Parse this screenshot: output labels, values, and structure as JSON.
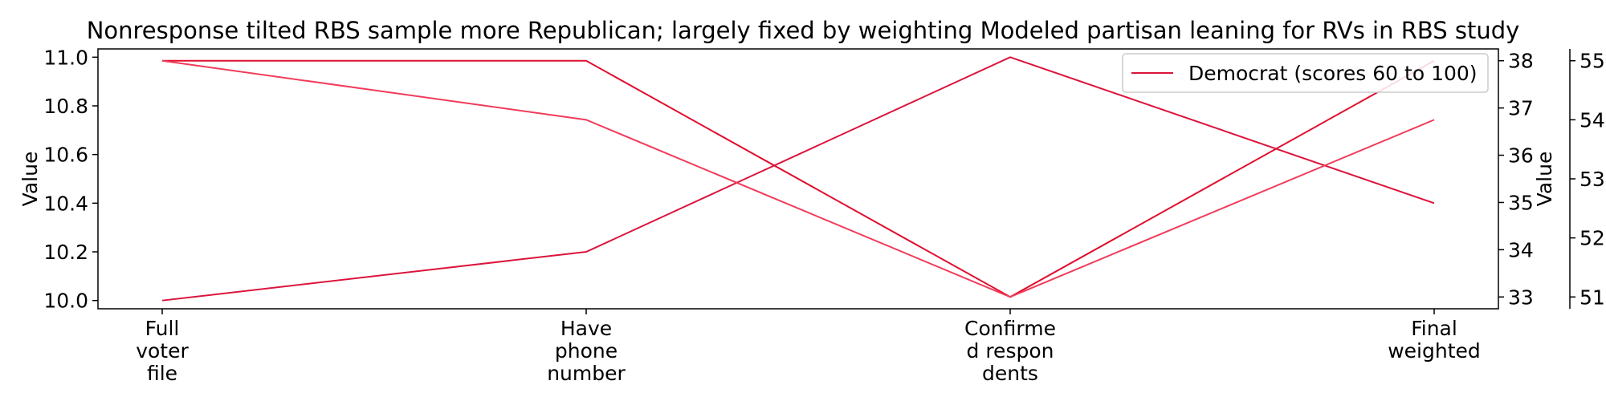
{
  "chart_data": {
    "type": "line",
    "title": "Nonresponse tilted RBS sample more Republican; largely fixed by weighting Modeled partisan leaning for RVs in RBS study",
    "categories": [
      [
        "Full",
        "voter",
        "file"
      ],
      [
        "Have",
        "phone",
        "number"
      ],
      [
        "Confirme",
        "d respon",
        "dents"
      ],
      [
        "Final",
        "weighted"
      ]
    ],
    "axes": [
      {
        "id": "left",
        "label": "Value",
        "ylim": [
          9.966,
          11.034
        ],
        "ticks": [
          10.0,
          10.2,
          10.4,
          10.6,
          10.8,
          11.0
        ],
        "tick_labels": [
          "10.0",
          "10.2",
          "10.4",
          "10.6",
          "10.8",
          "11.0"
        ]
      },
      {
        "id": "right1",
        "label": "Value",
        "ylim": [
          32.75,
          38.25
        ],
        "ticks": [
          33,
          34,
          35,
          36,
          37,
          38
        ],
        "tick_labels": [
          "33",
          "34",
          "35",
          "36",
          "37",
          "38"
        ]
      },
      {
        "id": "right2",
        "label": "",
        "ylim": [
          50.8,
          55.2
        ],
        "ticks": [
          51,
          52,
          53,
          54,
          55
        ],
        "tick_labels": [
          "51",
          "52",
          "53",
          "54",
          "55"
        ]
      }
    ],
    "series": [
      {
        "name": "Democrat (scores 60 to 100)",
        "axis": "left",
        "values": [
          10.0,
          10.2,
          11.0,
          10.4
        ],
        "color": "#dc143c"
      },
      {
        "name": "",
        "axis": "right1",
        "values": [
          38,
          38,
          33,
          38
        ],
        "color": "#e0102f"
      },
      {
        "name": "",
        "axis": "right2",
        "values": [
          55,
          54,
          51,
          54
        ],
        "color": "#f03c5a"
      }
    ],
    "legend": {
      "placement": "top-right",
      "entries": [
        "Democrat (scores 60 to 100)"
      ]
    },
    "grid": false,
    "colors": {
      "axis_label": "#e0102f",
      "axis": "#000000"
    }
  }
}
